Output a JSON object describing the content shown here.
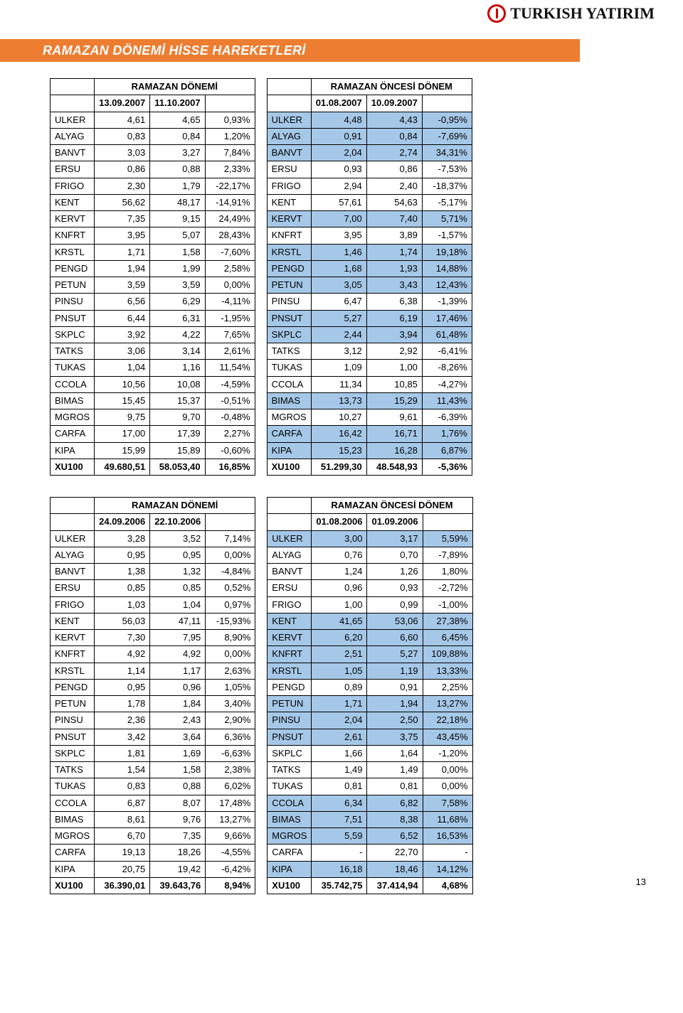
{
  "logo_text": "TURKISH YATIRIM",
  "title": "RAMAZAN DÖNEMİ HİSSE HAREKETLERİ",
  "page_number": "13",
  "highlight_color": "#a6c8e8",
  "accent_color": "#ed7d31",
  "brand_red": "#cc0000",
  "tables": [
    {
      "left": {
        "period_label": "RAMAZAN DÖNEMİ",
        "date1": "13.09.2007",
        "date2": "11.10.2007",
        "rows": [
          [
            "ULKER",
            "4,61",
            "4,65",
            "0,93%",
            false
          ],
          [
            "ALYAG",
            "0,83",
            "0,84",
            "1,20%",
            false
          ],
          [
            "BANVT",
            "3,03",
            "3,27",
            "7,84%",
            false
          ],
          [
            "ERSU",
            "0,86",
            "0,88",
            "2,33%",
            false
          ],
          [
            "FRIGO",
            "2,30",
            "1,79",
            "-22,17%",
            false
          ],
          [
            "KENT",
            "56,62",
            "48,17",
            "-14,91%",
            false
          ],
          [
            "KERVT",
            "7,35",
            "9,15",
            "24,49%",
            false
          ],
          [
            "KNFRT",
            "3,95",
            "5,07",
            "28,43%",
            false
          ],
          [
            "KRSTL",
            "1,71",
            "1,58",
            "-7,60%",
            false
          ],
          [
            "PENGD",
            "1,94",
            "1,99",
            "2,58%",
            false
          ],
          [
            "PETUN",
            "3,59",
            "3,59",
            "0,00%",
            false
          ],
          [
            "PINSU",
            "6,56",
            "6,29",
            "-4,11%",
            false
          ],
          [
            "PNSUT",
            "6,44",
            "6,31",
            "-1,95%",
            false
          ],
          [
            "SKPLC",
            "3,92",
            "4,22",
            "7,65%",
            false
          ],
          [
            "TATKS",
            "3,06",
            "3,14",
            "2,61%",
            false
          ],
          [
            "TUKAS",
            "1,04",
            "1,16",
            "11,54%",
            false
          ],
          [
            "CCOLA",
            "10,56",
            "10,08",
            "-4,59%",
            false
          ],
          [
            "BIMAS",
            "15,45",
            "15,37",
            "-0,51%",
            false
          ],
          [
            "MGROS",
            "9,75",
            "9,70",
            "-0,48%",
            false
          ],
          [
            "CARFA",
            "17,00",
            "17,39",
            "2,27%",
            false
          ],
          [
            "KIPA",
            "15,99",
            "15,89",
            "-0,60%",
            false
          ]
        ],
        "footer": [
          "XU100",
          "49.680,51",
          "58.053,40",
          "16,85%"
        ]
      },
      "right": {
        "period_label": "RAMAZAN ÖNCESİ DÖNEM",
        "date1": "01.08.2007",
        "date2": "10.09.2007",
        "rows": [
          [
            "ULKER",
            "4,48",
            "4,43",
            "-0,95%",
            true
          ],
          [
            "ALYAG",
            "0,91",
            "0,84",
            "-7,69%",
            true
          ],
          [
            "BANVT",
            "2,04",
            "2,74",
            "34,31%",
            true
          ],
          [
            "ERSU",
            "0,93",
            "0,86",
            "-7,53%",
            false
          ],
          [
            "FRIGO",
            "2,94",
            "2,40",
            "-18,37%",
            false
          ],
          [
            "KENT",
            "57,61",
            "54,63",
            "-5,17%",
            false
          ],
          [
            "KERVT",
            "7,00",
            "7,40",
            "5,71%",
            true
          ],
          [
            "KNFRT",
            "3,95",
            "3,89",
            "-1,57%",
            false
          ],
          [
            "KRSTL",
            "1,46",
            "1,74",
            "19,18%",
            true
          ],
          [
            "PENGD",
            "1,68",
            "1,93",
            "14,88%",
            true
          ],
          [
            "PETUN",
            "3,05",
            "3,43",
            "12,43%",
            true
          ],
          [
            "PINSU",
            "6,47",
            "6,38",
            "-1,39%",
            false
          ],
          [
            "PNSUT",
            "5,27",
            "6,19",
            "17,46%",
            true
          ],
          [
            "SKPLC",
            "2,44",
            "3,94",
            "61,48%",
            true
          ],
          [
            "TATKS",
            "3,12",
            "2,92",
            "-6,41%",
            false
          ],
          [
            "TUKAS",
            "1,09",
            "1,00",
            "-8,26%",
            false
          ],
          [
            "CCOLA",
            "11,34",
            "10,85",
            "-4,27%",
            false
          ],
          [
            "BIMAS",
            "13,73",
            "15,29",
            "11,43%",
            true
          ],
          [
            "MGROS",
            "10,27",
            "9,61",
            "-6,39%",
            false
          ],
          [
            "CARFA",
            "16,42",
            "16,71",
            "1,76%",
            true
          ],
          [
            "KIPA",
            "15,23",
            "16,28",
            "6,87%",
            true
          ]
        ],
        "footer": [
          "XU100",
          "51.299,30",
          "48.548,93",
          "-5,36%"
        ]
      }
    },
    {
      "left": {
        "period_label": "RAMAZAN DÖNEMİ",
        "date1": "24.09.2006",
        "date2": "22.10.2006",
        "rows": [
          [
            "ULKER",
            "3,28",
            "3,52",
            "7,14%",
            false
          ],
          [
            "ALYAG",
            "0,95",
            "0,95",
            "0,00%",
            false
          ],
          [
            "BANVT",
            "1,38",
            "1,32",
            "-4,84%",
            false
          ],
          [
            "ERSU",
            "0,85",
            "0,85",
            "0,52%",
            false
          ],
          [
            "FRIGO",
            "1,03",
            "1,04",
            "0,97%",
            false
          ],
          [
            "KENT",
            "56,03",
            "47,11",
            "-15,93%",
            false
          ],
          [
            "KERVT",
            "7,30",
            "7,95",
            "8,90%",
            false
          ],
          [
            "KNFRT",
            "4,92",
            "4,92",
            "0,00%",
            false
          ],
          [
            "KRSTL",
            "1,14",
            "1,17",
            "2,63%",
            false
          ],
          [
            "PENGD",
            "0,95",
            "0,96",
            "1,05%",
            false
          ],
          [
            "PETUN",
            "1,78",
            "1,84",
            "3,40%",
            false
          ],
          [
            "PINSU",
            "2,36",
            "2,43",
            "2,90%",
            false
          ],
          [
            "PNSUT",
            "3,42",
            "3,64",
            "6,36%",
            false
          ],
          [
            "SKPLC",
            "1,81",
            "1,69",
            "-6,63%",
            false
          ],
          [
            "TATKS",
            "1,54",
            "1,58",
            "2,38%",
            false
          ],
          [
            "TUKAS",
            "0,83",
            "0,88",
            "6,02%",
            false
          ],
          [
            "CCOLA",
            "6,87",
            "8,07",
            "17,48%",
            false
          ],
          [
            "BIMAS",
            "8,61",
            "9,76",
            "13,27%",
            false
          ],
          [
            "MGROS",
            "6,70",
            "7,35",
            "9,66%",
            false
          ],
          [
            "CARFA",
            "19,13",
            "18,26",
            "-4,55%",
            false
          ],
          [
            "KIPA",
            "20,75",
            "19,42",
            "-6,42%",
            false
          ]
        ],
        "footer": [
          "XU100",
          "36.390,01",
          "39.643,76",
          "8,94%"
        ]
      },
      "right": {
        "period_label": "RAMAZAN ÖNCESİ DÖNEM",
        "date1": "01.08.2006",
        "date2": "01.09.2006",
        "rows": [
          [
            "ULKER",
            "3,00",
            "3,17",
            "5,59%",
            true
          ],
          [
            "ALYAG",
            "0,76",
            "0,70",
            "-7,89%",
            false
          ],
          [
            "BANVT",
            "1,24",
            "1,26",
            "1,80%",
            false
          ],
          [
            "ERSU",
            "0,96",
            "0,93",
            "-2,72%",
            false
          ],
          [
            "FRIGO",
            "1,00",
            "0,99",
            "-1,00%",
            false
          ],
          [
            "KENT",
            "41,65",
            "53,06",
            "27,38%",
            true
          ],
          [
            "KERVT",
            "6,20",
            "6,60",
            "6,45%",
            true
          ],
          [
            "KNFRT",
            "2,51",
            "5,27",
            "109,88%",
            true
          ],
          [
            "KRSTL",
            "1,05",
            "1,19",
            "13,33%",
            true
          ],
          [
            "PENGD",
            "0,89",
            "0,91",
            "2,25%",
            false
          ],
          [
            "PETUN",
            "1,71",
            "1,94",
            "13,27%",
            true
          ],
          [
            "PINSU",
            "2,04",
            "2,50",
            "22,18%",
            true
          ],
          [
            "PNSUT",
            "2,61",
            "3,75",
            "43,45%",
            true
          ],
          [
            "SKPLC",
            "1,66",
            "1,64",
            "-1,20%",
            false
          ],
          [
            "TATKS",
            "1,49",
            "1,49",
            "0,00%",
            false
          ],
          [
            "TUKAS",
            "0,81",
            "0,81",
            "0,00%",
            false
          ],
          [
            "CCOLA",
            "6,34",
            "6,82",
            "7,58%",
            true
          ],
          [
            "BIMAS",
            "7,51",
            "8,38",
            "11,68%",
            true
          ],
          [
            "MGROS",
            "5,59",
            "6,52",
            "16,53%",
            true
          ],
          [
            "CARFA",
            "-",
            "22,70",
            "-",
            false
          ],
          [
            "KIPA",
            "16,18",
            "18,46",
            "14,12%",
            true
          ]
        ],
        "footer": [
          "XU100",
          "35.742,75",
          "37.414,94",
          "4,68%"
        ]
      }
    }
  ],
  "col_widths": {
    "ticker": 62,
    "val": 74,
    "pct": 70
  }
}
